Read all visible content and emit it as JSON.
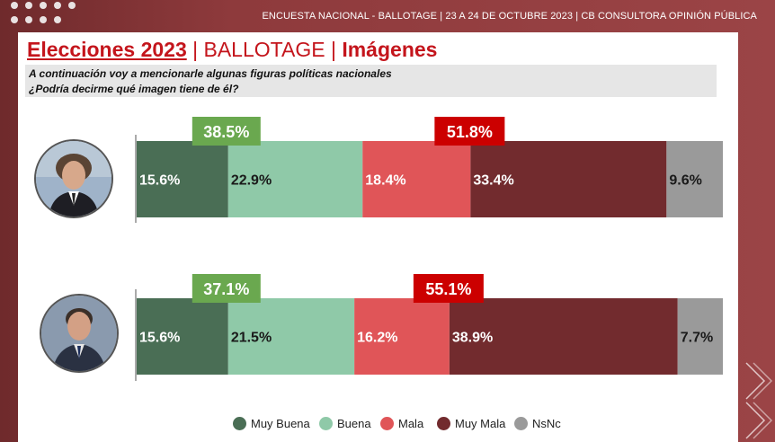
{
  "header": {
    "text": "ENCUESTA NACIONAL - BALLOTAGE  | 23 A 24 DE OCTUBRE 2023 | CB CONSULTORA OPINIÓN PÚBLICA"
  },
  "title": {
    "part1": "Elecciones 2023",
    "sep1": " | ",
    "part2": "BALLOTAGE",
    "sep2": " | ",
    "part3": "Imágenes"
  },
  "question": {
    "line1": "A continuación voy a mencionarle algunas figuras políticas nacionales",
    "line2": "¿Podría decirme qué imagen tiene de él?"
  },
  "colors": {
    "muy_buena": "#4a6e55",
    "buena": "#8fc9a8",
    "mala": "#e05558",
    "muy_mala": "#722b2e",
    "nsnc": "#9a9a9a",
    "positive_badge": "#6aa84f",
    "negative_badge": "#cc0000"
  },
  "chart_data": {
    "type": "bar",
    "orientation": "horizontal-stacked",
    "title": "",
    "xlabel": "",
    "ylabel": "",
    "xlim": [
      0,
      100
    ],
    "grid": false,
    "legend_position": "bottom",
    "series_names": [
      "Muy Buena",
      "Buena",
      "Mala",
      "Muy Mala",
      "NsNc"
    ],
    "rows": [
      {
        "values": [
          15.6,
          22.9,
          18.4,
          33.4,
          9.6
        ],
        "labels": [
          "15.6%",
          "22.9%",
          "18.4%",
          "33.4%",
          "9.6%"
        ],
        "positive_total": "38.5%",
        "negative_total": "51.8%"
      },
      {
        "values": [
          15.6,
          21.5,
          16.2,
          38.9,
          7.7
        ],
        "labels": [
          "15.6%",
          "21.5%",
          "16.2%",
          "38.9%",
          "7.7%"
        ],
        "positive_total": "37.1%",
        "negative_total": "55.1%"
      }
    ]
  }
}
